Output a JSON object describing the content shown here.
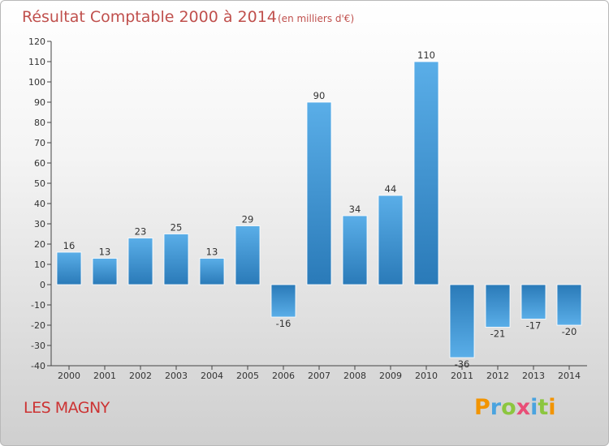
{
  "title": "Résultat Comptable 2000 à 2014",
  "unit": "(en milliers d'€)",
  "commune": "LES MAGNY",
  "brand": "Proxiti",
  "colors": {
    "bar_light": "#5aaee8",
    "bar_dark": "#2a7ab8",
    "title": "#c0504d"
  },
  "chart_data": {
    "type": "bar",
    "title": "Résultat Comptable 2000 à 2014",
    "subtitle": "(en milliers d'€)",
    "xlabel": "",
    "ylabel": "",
    "categories": [
      "2000",
      "2001",
      "2002",
      "2003",
      "2004",
      "2005",
      "2006",
      "2007",
      "2008",
      "2009",
      "2010",
      "2011",
      "2012",
      "2013",
      "2014"
    ],
    "values": [
      16,
      13,
      23,
      25,
      13,
      29,
      -16,
      90,
      34,
      44,
      110,
      -36,
      -21,
      -17,
      -20
    ],
    "labels": [
      "16",
      "13",
      "23",
      "25",
      "13",
      "29",
      "-16",
      "90",
      "34",
      "44",
      "110",
      "-36",
      "-21",
      "-17",
      "-20"
    ],
    "ylim": [
      -40,
      120
    ],
    "yticks": [
      -40,
      -30,
      -20,
      -10,
      0,
      10,
      20,
      30,
      40,
      50,
      60,
      70,
      80,
      90,
      100,
      110,
      120
    ],
    "grid": false,
    "legend": "none"
  }
}
